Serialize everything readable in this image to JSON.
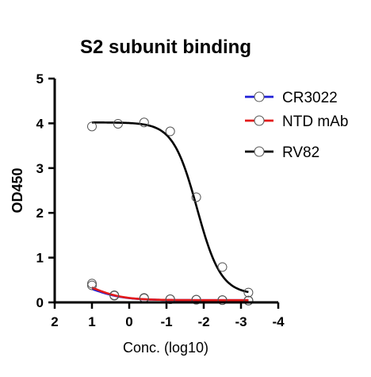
{
  "chart_data": {
    "type": "scatter",
    "title": "S2 subunit binding",
    "xlabel": "Conc. (log10)",
    "ylabel": "OD450",
    "xlim": [
      2,
      -4
    ],
    "ylim": [
      0,
      5
    ],
    "x_reversed": true,
    "x_ticks": [
      2,
      1,
      0,
      -1,
      -2,
      -3,
      -4
    ],
    "y_ticks": [
      0,
      1,
      2,
      3,
      4,
      5
    ],
    "legend_position": "top-right",
    "fit": "sigmoidal dose-response curve through points",
    "series": [
      {
        "name": "CR3022",
        "color": "#1f1fd6",
        "x": [
          1,
          0.4,
          -0.4,
          -1.1,
          -1.8,
          -2.5,
          -3.2
        ],
        "y": [
          0.38,
          0.15,
          0.09,
          0.07,
          0.06,
          0.05,
          0.04
        ],
        "curve": {
          "bottom": 0.05,
          "top": 0.55,
          "logec50": 1.0,
          "hill": 1.0
        }
      },
      {
        "name": "NTD mAb",
        "color": "#e41a1a",
        "x": [
          1,
          0.4,
          -0.4,
          -1.1,
          -1.8,
          -2.5,
          -3.2
        ],
        "y": [
          0.42,
          0.16,
          0.1,
          0.07,
          0.06,
          0.05,
          0.04
        ],
        "curve": {
          "bottom": 0.05,
          "top": 0.65,
          "logec50": 1.05,
          "hill": 1.0
        }
      },
      {
        "name": "RV82",
        "color": "#000000",
        "x": [
          1,
          0.3,
          -0.4,
          -1.1,
          -1.8,
          -2.5,
          -3.2
        ],
        "y": [
          3.93,
          3.99,
          4.02,
          3.82,
          2.35,
          0.79,
          0.22
        ],
        "curve": {
          "bottom": 0.18,
          "top": 4.02,
          "logec50": -1.82,
          "hill": 1.35
        }
      }
    ]
  }
}
